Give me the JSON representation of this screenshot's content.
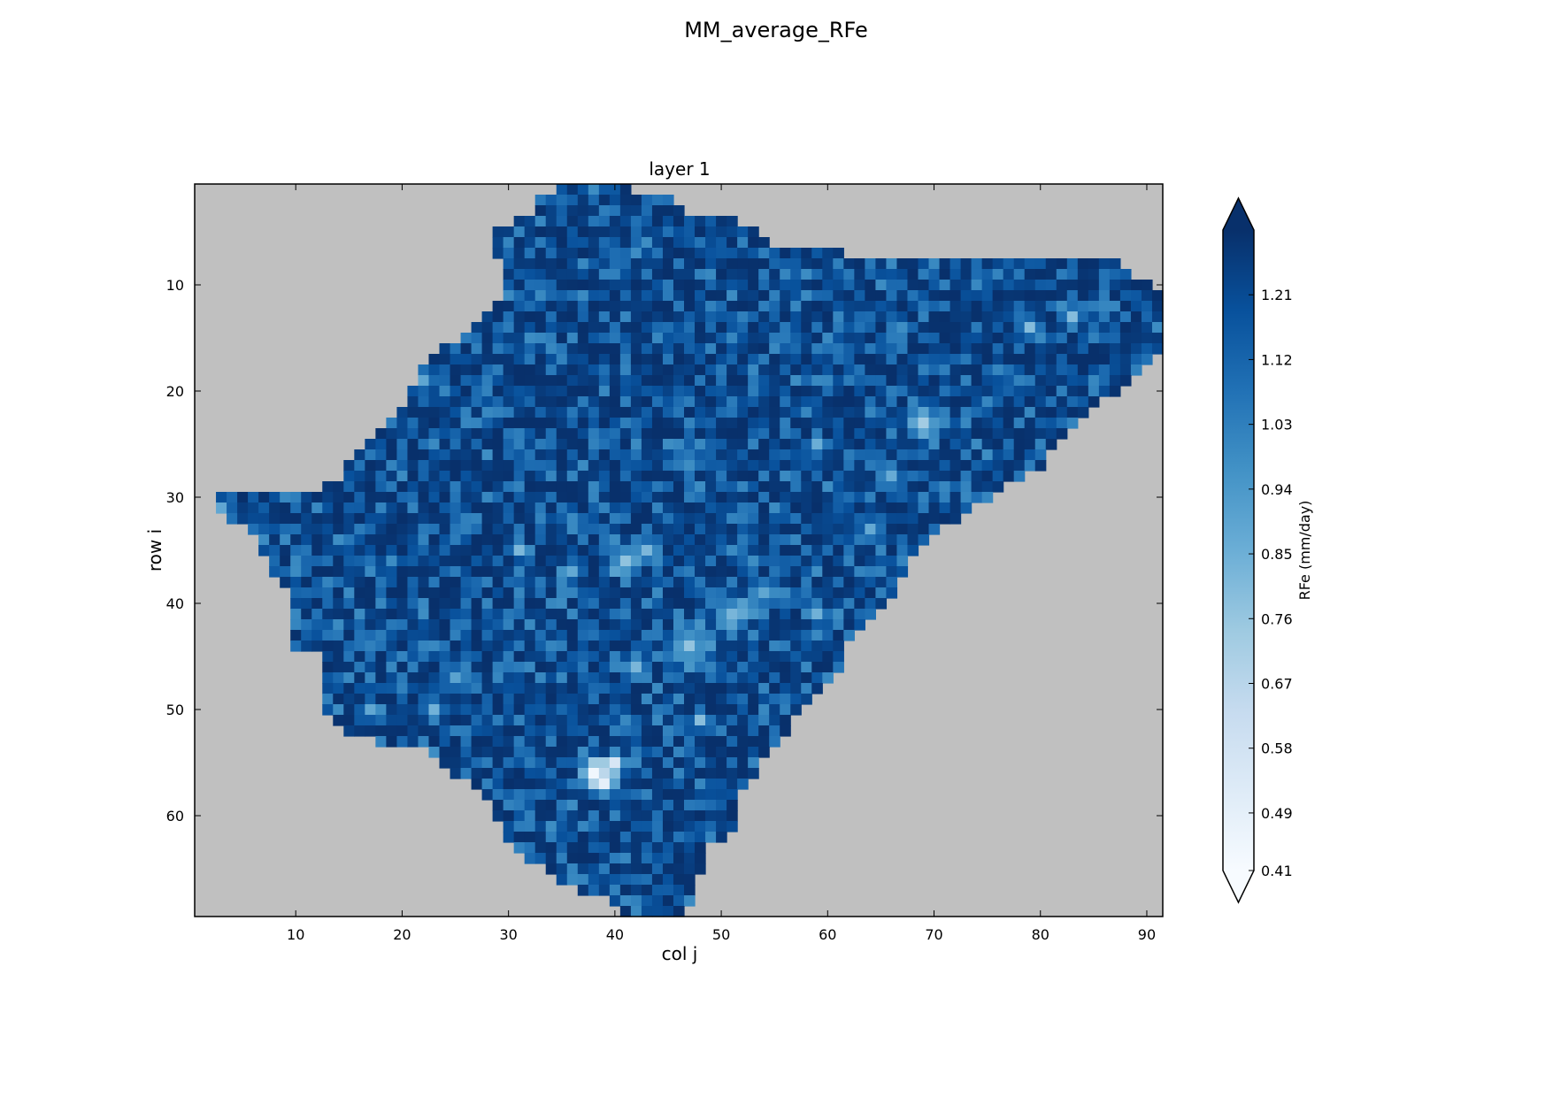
{
  "figure": {
    "suptitle": "MM_average_RFe"
  },
  "chart_data": {
    "type": "heatmap",
    "title": "layer 1",
    "xlabel": "col j",
    "ylabel": "row i",
    "x_ticks": [
      10,
      20,
      30,
      40,
      50,
      60,
      70,
      80,
      90
    ],
    "y_ticks": [
      10,
      20,
      30,
      40,
      50,
      60
    ],
    "xlim": [
      0.5,
      91.5
    ],
    "ylim": [
      69.5,
      0.5
    ],
    "ncols": 91,
    "nrows": 69,
    "colormap": "Blues",
    "masked_color": "#c0c0c0",
    "colorbar": {
      "label": "RFe (mm/day)",
      "ticks": [
        "0.41",
        "0.49",
        "0.58",
        "0.67",
        "0.76",
        "0.85",
        "0.94",
        "1.03",
        "1.12",
        "1.21"
      ],
      "vmin": 0.41,
      "vmax": 1.3,
      "extend": "both"
    },
    "mask_rows": [
      [
        1,
        35,
        41
      ],
      [
        2,
        33,
        45
      ],
      [
        3,
        33,
        46
      ],
      [
        4,
        31,
        51
      ],
      [
        5,
        29,
        53
      ],
      [
        6,
        29,
        54
      ],
      [
        7,
        29,
        61
      ],
      [
        8,
        30,
        87
      ],
      [
        9,
        30,
        88
      ],
      [
        10,
        30,
        90
      ],
      [
        11,
        30,
        91
      ],
      [
        12,
        29,
        91
      ],
      [
        13,
        28,
        91
      ],
      [
        14,
        27,
        91
      ],
      [
        15,
        26,
        91
      ],
      [
        16,
        24,
        91
      ],
      [
        17,
        23,
        90
      ],
      [
        18,
        22,
        89
      ],
      [
        19,
        22,
        88
      ],
      [
        20,
        21,
        87
      ],
      [
        21,
        21,
        85
      ],
      [
        22,
        20,
        84
      ],
      [
        23,
        19,
        83
      ],
      [
        24,
        18,
        82
      ],
      [
        25,
        17,
        81
      ],
      [
        26,
        16,
        80
      ],
      [
        27,
        15,
        80
      ],
      [
        28,
        15,
        78
      ],
      [
        29,
        13,
        76
      ],
      [
        30,
        3,
        75
      ],
      [
        31,
        3,
        73
      ],
      [
        32,
        4,
        72
      ],
      [
        33,
        6,
        70
      ],
      [
        34,
        7,
        69
      ],
      [
        35,
        7,
        68
      ],
      [
        36,
        8,
        67
      ],
      [
        37,
        8,
        67
      ],
      [
        38,
        9,
        66
      ],
      [
        39,
        10,
        66
      ],
      [
        40,
        10,
        65
      ],
      [
        41,
        10,
        64
      ],
      [
        42,
        10,
        63
      ],
      [
        43,
        10,
        62
      ],
      [
        44,
        10,
        61
      ],
      [
        45,
        13,
        61
      ],
      [
        46,
        13,
        61
      ],
      [
        47,
        13,
        60
      ],
      [
        48,
        13,
        59
      ],
      [
        49,
        13,
        58
      ],
      [
        50,
        13,
        57
      ],
      [
        51,
        14,
        56
      ],
      [
        52,
        15,
        56
      ],
      [
        53,
        18,
        55
      ],
      [
        54,
        23,
        54
      ],
      [
        55,
        24,
        53
      ],
      [
        56,
        25,
        53
      ],
      [
        57,
        27,
        52
      ],
      [
        58,
        28,
        51
      ],
      [
        59,
        29,
        51
      ],
      [
        60,
        29,
        51
      ],
      [
        61,
        30,
        51
      ],
      [
        62,
        30,
        50
      ],
      [
        63,
        31,
        48
      ],
      [
        64,
        32,
        48
      ],
      [
        65,
        34,
        48
      ],
      [
        66,
        35,
        47
      ],
      [
        67,
        37,
        47
      ],
      [
        68,
        40,
        47
      ],
      [
        69,
        41,
        46
      ]
    ],
    "highlights": [
      [
        56,
        38,
        0.45,
        2.0
      ],
      [
        57,
        39,
        0.52,
        1.7
      ],
      [
        55,
        40,
        0.55,
        1.5
      ],
      [
        36,
        41,
        0.78,
        2.2
      ],
      [
        35,
        43,
        0.82,
        1.6
      ],
      [
        37,
        36,
        0.86,
        1.5
      ],
      [
        44,
        47,
        0.78,
        2.8
      ],
      [
        41,
        51,
        0.8,
        2.4
      ],
      [
        23,
        69,
        0.76,
        2.4
      ],
      [
        14,
        79,
        0.8,
        1.6
      ],
      [
        13,
        83,
        0.82,
        1.6
      ],
      [
        50,
        23,
        0.84,
        1.6
      ],
      [
        47,
        25,
        0.88,
        1.6
      ],
      [
        31,
        3,
        0.9,
        1.4
      ],
      [
        19,
        22,
        0.9,
        1.8
      ],
      [
        25,
        59,
        0.88,
        1.4
      ],
      [
        39,
        54,
        0.86,
        2.0
      ],
      [
        41,
        59,
        0.86,
        1.4
      ],
      [
        51,
        48,
        0.8,
        1.2
      ],
      [
        28,
        66,
        0.88,
        1.6
      ],
      [
        35,
        31,
        0.84,
        1.3
      ],
      [
        50,
        17,
        0.86,
        1.4
      ],
      [
        33,
        64,
        0.9,
        1.5
      ],
      [
        46,
        42,
        0.85,
        1.8
      ]
    ]
  }
}
